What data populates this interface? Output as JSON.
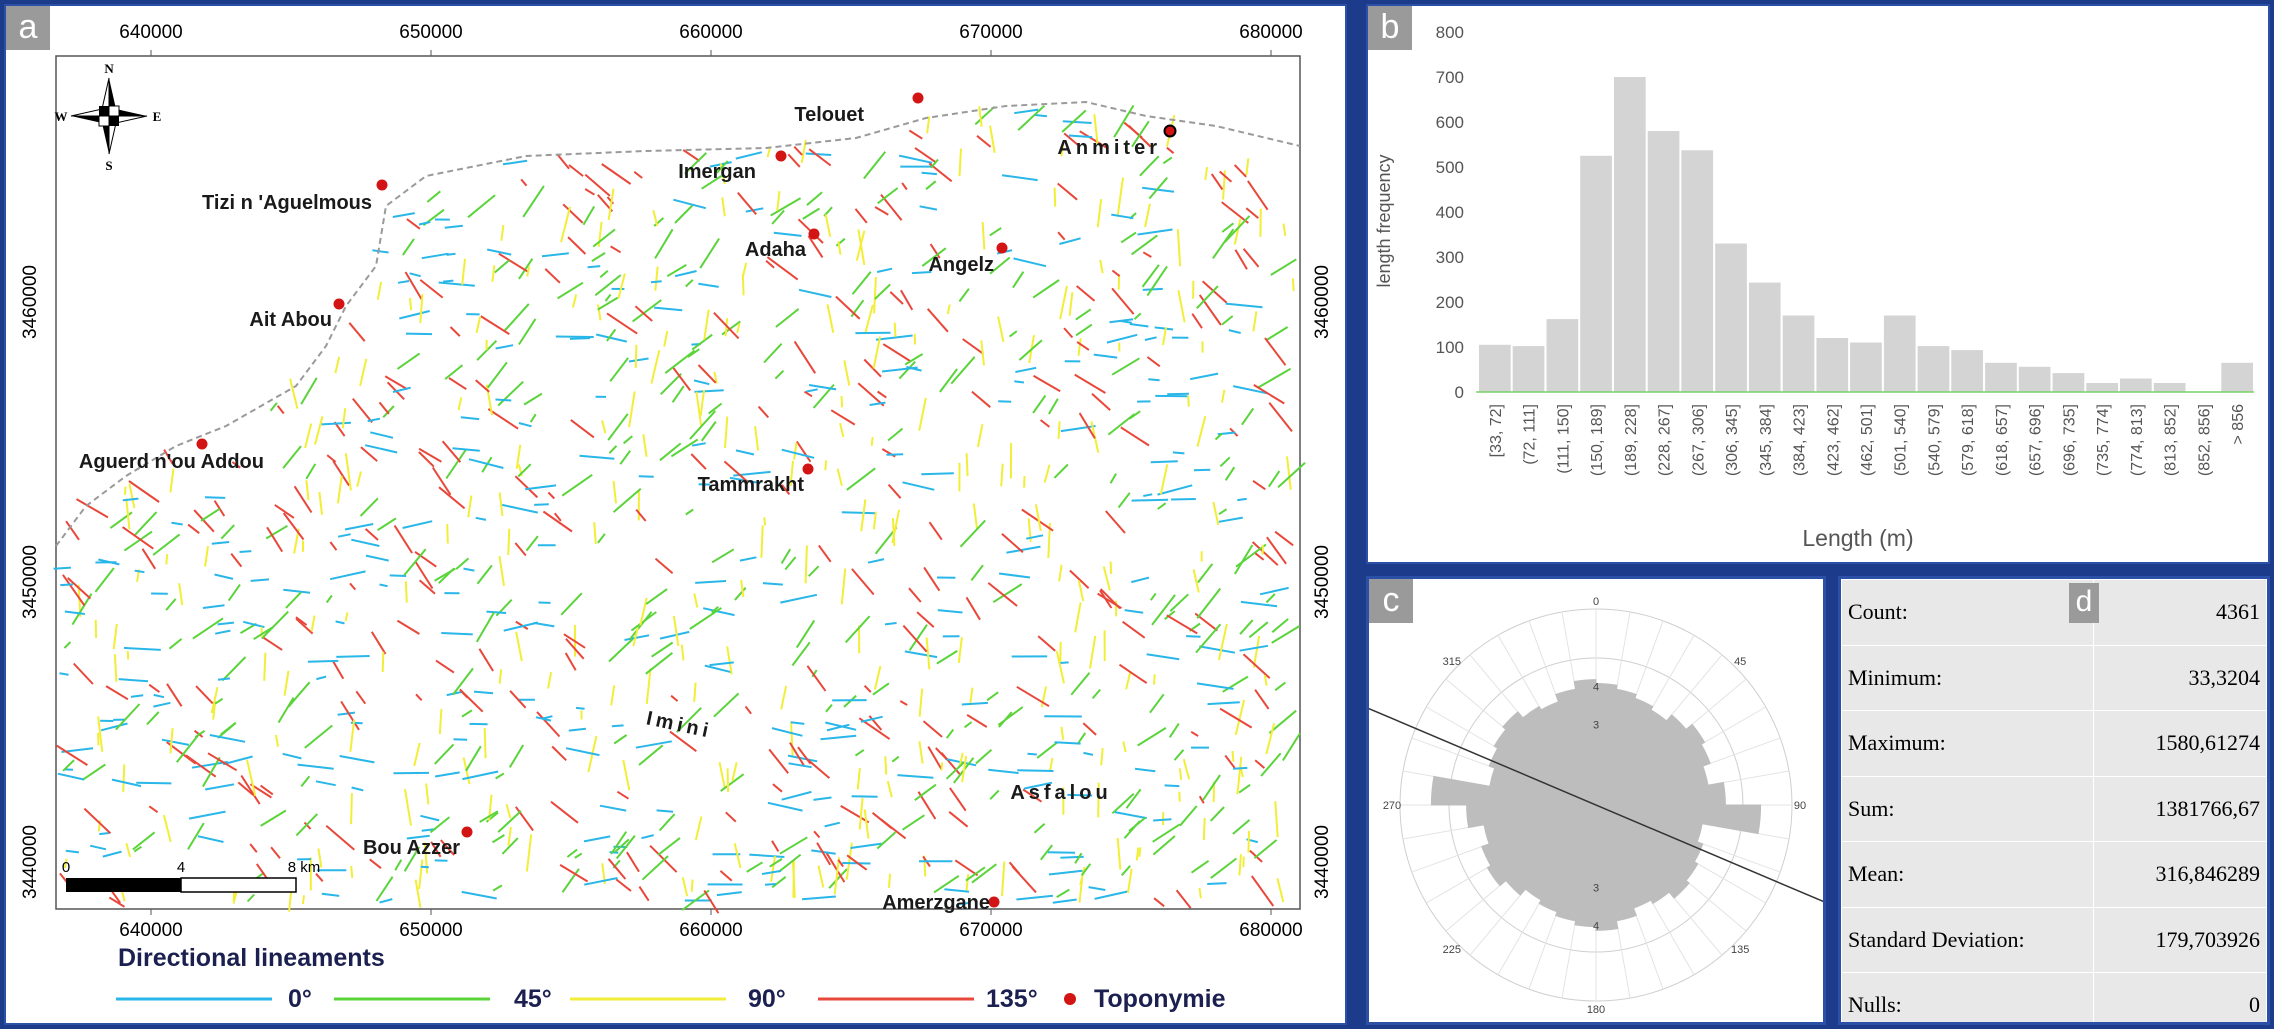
{
  "panels": {
    "a": "a",
    "b": "b",
    "c": "c",
    "d": "d"
  },
  "colors": {
    "deg0": "#29b6e8",
    "deg45": "#5ad43a",
    "deg90": "#f2ee38",
    "deg135": "#e8473a",
    "toponym": "#d31414"
  },
  "map": {
    "x_ticks": [
      "640000",
      "650000",
      "660000",
      "670000",
      "680000"
    ],
    "y_ticks": [
      "3460000",
      "3450000",
      "3440000"
    ],
    "north": {
      "n": "N",
      "s": "S",
      "w": "W",
      "e": "E"
    },
    "scale": {
      "zero": "0",
      "mid": "4",
      "end": "8 km"
    },
    "places": [
      {
        "name": "Telouet"
      },
      {
        "name": "Imergan"
      },
      {
        "name": "Anmiter"
      },
      {
        "name": "Tizi n 'Aguelmous"
      },
      {
        "name": "Adaha"
      },
      {
        "name": "Angelz"
      },
      {
        "name": "Ait Abou"
      },
      {
        "name": "Aguerd n'ou Addou"
      },
      {
        "name": "Tammrakht"
      },
      {
        "name": "Imini"
      },
      {
        "name": "Asfalou"
      },
      {
        "name": "Bou Azzer"
      },
      {
        "name": "Amerzgane"
      }
    ],
    "legend": {
      "title": "Directional lineaments",
      "deg0": "0°",
      "deg45": "45°",
      "deg90": "90°",
      "deg135": "135°",
      "toponym": "Toponymie"
    }
  },
  "chart_data": [
    {
      "type": "bar",
      "title": "",
      "xlabel": "Length (m)",
      "ylabel": "length frequency",
      "ylim": [
        0,
        800
      ],
      "y_ticks": [
        "0",
        "100",
        "200",
        "300",
        "400",
        "500",
        "600",
        "700",
        "800"
      ],
      "categories": [
        "[33, 72]",
        "(72, 111]",
        "(111, 150]",
        "(150, 189]",
        "(189, 228]",
        "(228, 267]",
        "(267, 306]",
        "(306, 345]",
        "(345, 384]",
        "(384, 423]",
        "(423, 462]",
        "(462, 501]",
        "(501, 540]",
        "(540, 579]",
        "(579, 618]",
        "(618, 657]",
        "(657, 696]",
        "(696, 735]",
        "(735, 774]",
        "(774, 813]",
        "(813, 852]",
        "(852, 856]",
        "> 856"
      ],
      "values": [
        105,
        102,
        162,
        525,
        700,
        580,
        537,
        330,
        243,
        170,
        120,
        110,
        170,
        102,
        93,
        65,
        56,
        42,
        20,
        30,
        20,
        0,
        65
      ],
      "grid": false,
      "bar_color": "#d4d4d4"
    },
    {
      "type": "rose",
      "title": "",
      "angle_labels": [
        "0",
        "45",
        "90",
        "135",
        "180",
        "225",
        "270",
        "315"
      ],
      "radial_labels": [
        "3",
        "4"
      ],
      "mean_direction_deg": 113,
      "fill_color": "#bdbdbd"
    }
  ],
  "stats": [
    {
      "label": "Count:",
      "value": "4361"
    },
    {
      "label": "Minimum:",
      "value": "33,3204"
    },
    {
      "label": "Maximum:",
      "value": "1580,61274"
    },
    {
      "label": "Sum:",
      "value": "1381766,67"
    },
    {
      "label": "Mean:",
      "value": "316,846289"
    },
    {
      "label": "Standard Deviation:",
      "value": "179,703926"
    },
    {
      "label": "Nulls:",
      "value": "0"
    }
  ]
}
